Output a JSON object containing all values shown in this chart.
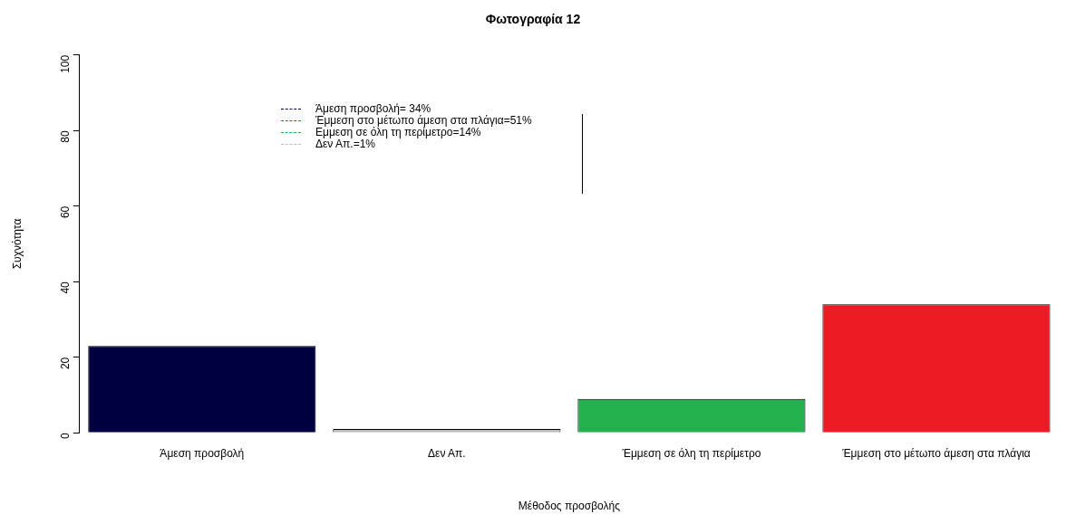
{
  "chart_data": {
    "type": "bar",
    "title": "Φωτογραφία 12",
    "xlabel": "Μέθοδος προσβολής",
    "ylabel": "Συχνότητα",
    "categories": [
      "Άμεση προσβολή",
      "Δεν Απ.",
      "Έμμεση σε όλη τη περίμετρο",
      "Έμμεση στο μέτωπο άμεση στα πλάγια"
    ],
    "values": [
      23,
      1,
      9,
      34
    ],
    "colors": [
      "#000040",
      "#bebebe",
      "#22b14c",
      "#ed1c24"
    ],
    "ylim": [
      0,
      100
    ],
    "yticks": [
      0,
      20,
      40,
      60,
      80,
      100
    ],
    "grid": false,
    "legend": false,
    "annotations": [
      "Άμεση προσβολή= 34%",
      "Έμμεση στο μέτωπο άμεση στα πλάγια=51%",
      "Εμμεση σε όλη τη περίμετρο=14%",
      "Δεν Απ.=1%"
    ]
  }
}
